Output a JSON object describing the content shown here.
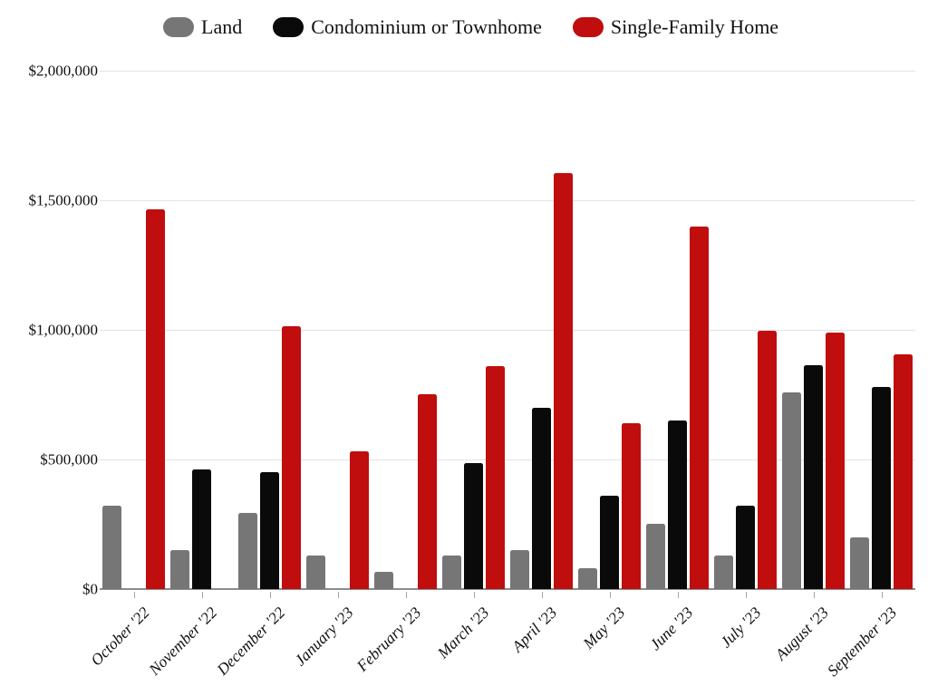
{
  "chart_data": {
    "type": "bar",
    "title": "",
    "categories": [
      "October '22",
      "November '22",
      "December '22",
      "January '23",
      "February '23",
      "March '23",
      "April '23",
      "May '23",
      "June '23",
      "July '23",
      "August '23",
      "September '23"
    ],
    "series": [
      {
        "name": "Land",
        "color": "#767676",
        "values": [
          320000,
          150000,
          295000,
          130000,
          65000,
          130000,
          150000,
          80000,
          250000,
          130000,
          760000,
          200000
        ]
      },
      {
        "name": "Condominium or Townhome",
        "color": "#0a0a0a",
        "values": [
          null,
          460000,
          450000,
          null,
          null,
          485000,
          700000,
          360000,
          650000,
          320000,
          865000,
          780000
        ]
      },
      {
        "name": "Single-Family Home",
        "color": "#c00d0d",
        "values": [
          1465000,
          null,
          1015000,
          530000,
          750000,
          860000,
          1605000,
          640000,
          1400000,
          995000,
          990000,
          905000
        ]
      }
    ],
    "y_ticks": [
      {
        "label": "$0",
        "value": 0
      },
      {
        "label": "$500,000",
        "value": 500000
      },
      {
        "label": "$1,000,000",
        "value": 1000000
      },
      {
        "label": "$1,500,000",
        "value": 1500000
      },
      {
        "label": "$2,000,000",
        "value": 2000000
      }
    ],
    "xlabel": "",
    "ylabel": "",
    "ylim": [
      0,
      2000000
    ],
    "grid": true,
    "legend_position": "top"
  },
  "colors": {
    "gridline": "#e3e3e3",
    "axisline": "#8c8c8c",
    "tick": "#a6a6a6",
    "text": "#111111"
  }
}
